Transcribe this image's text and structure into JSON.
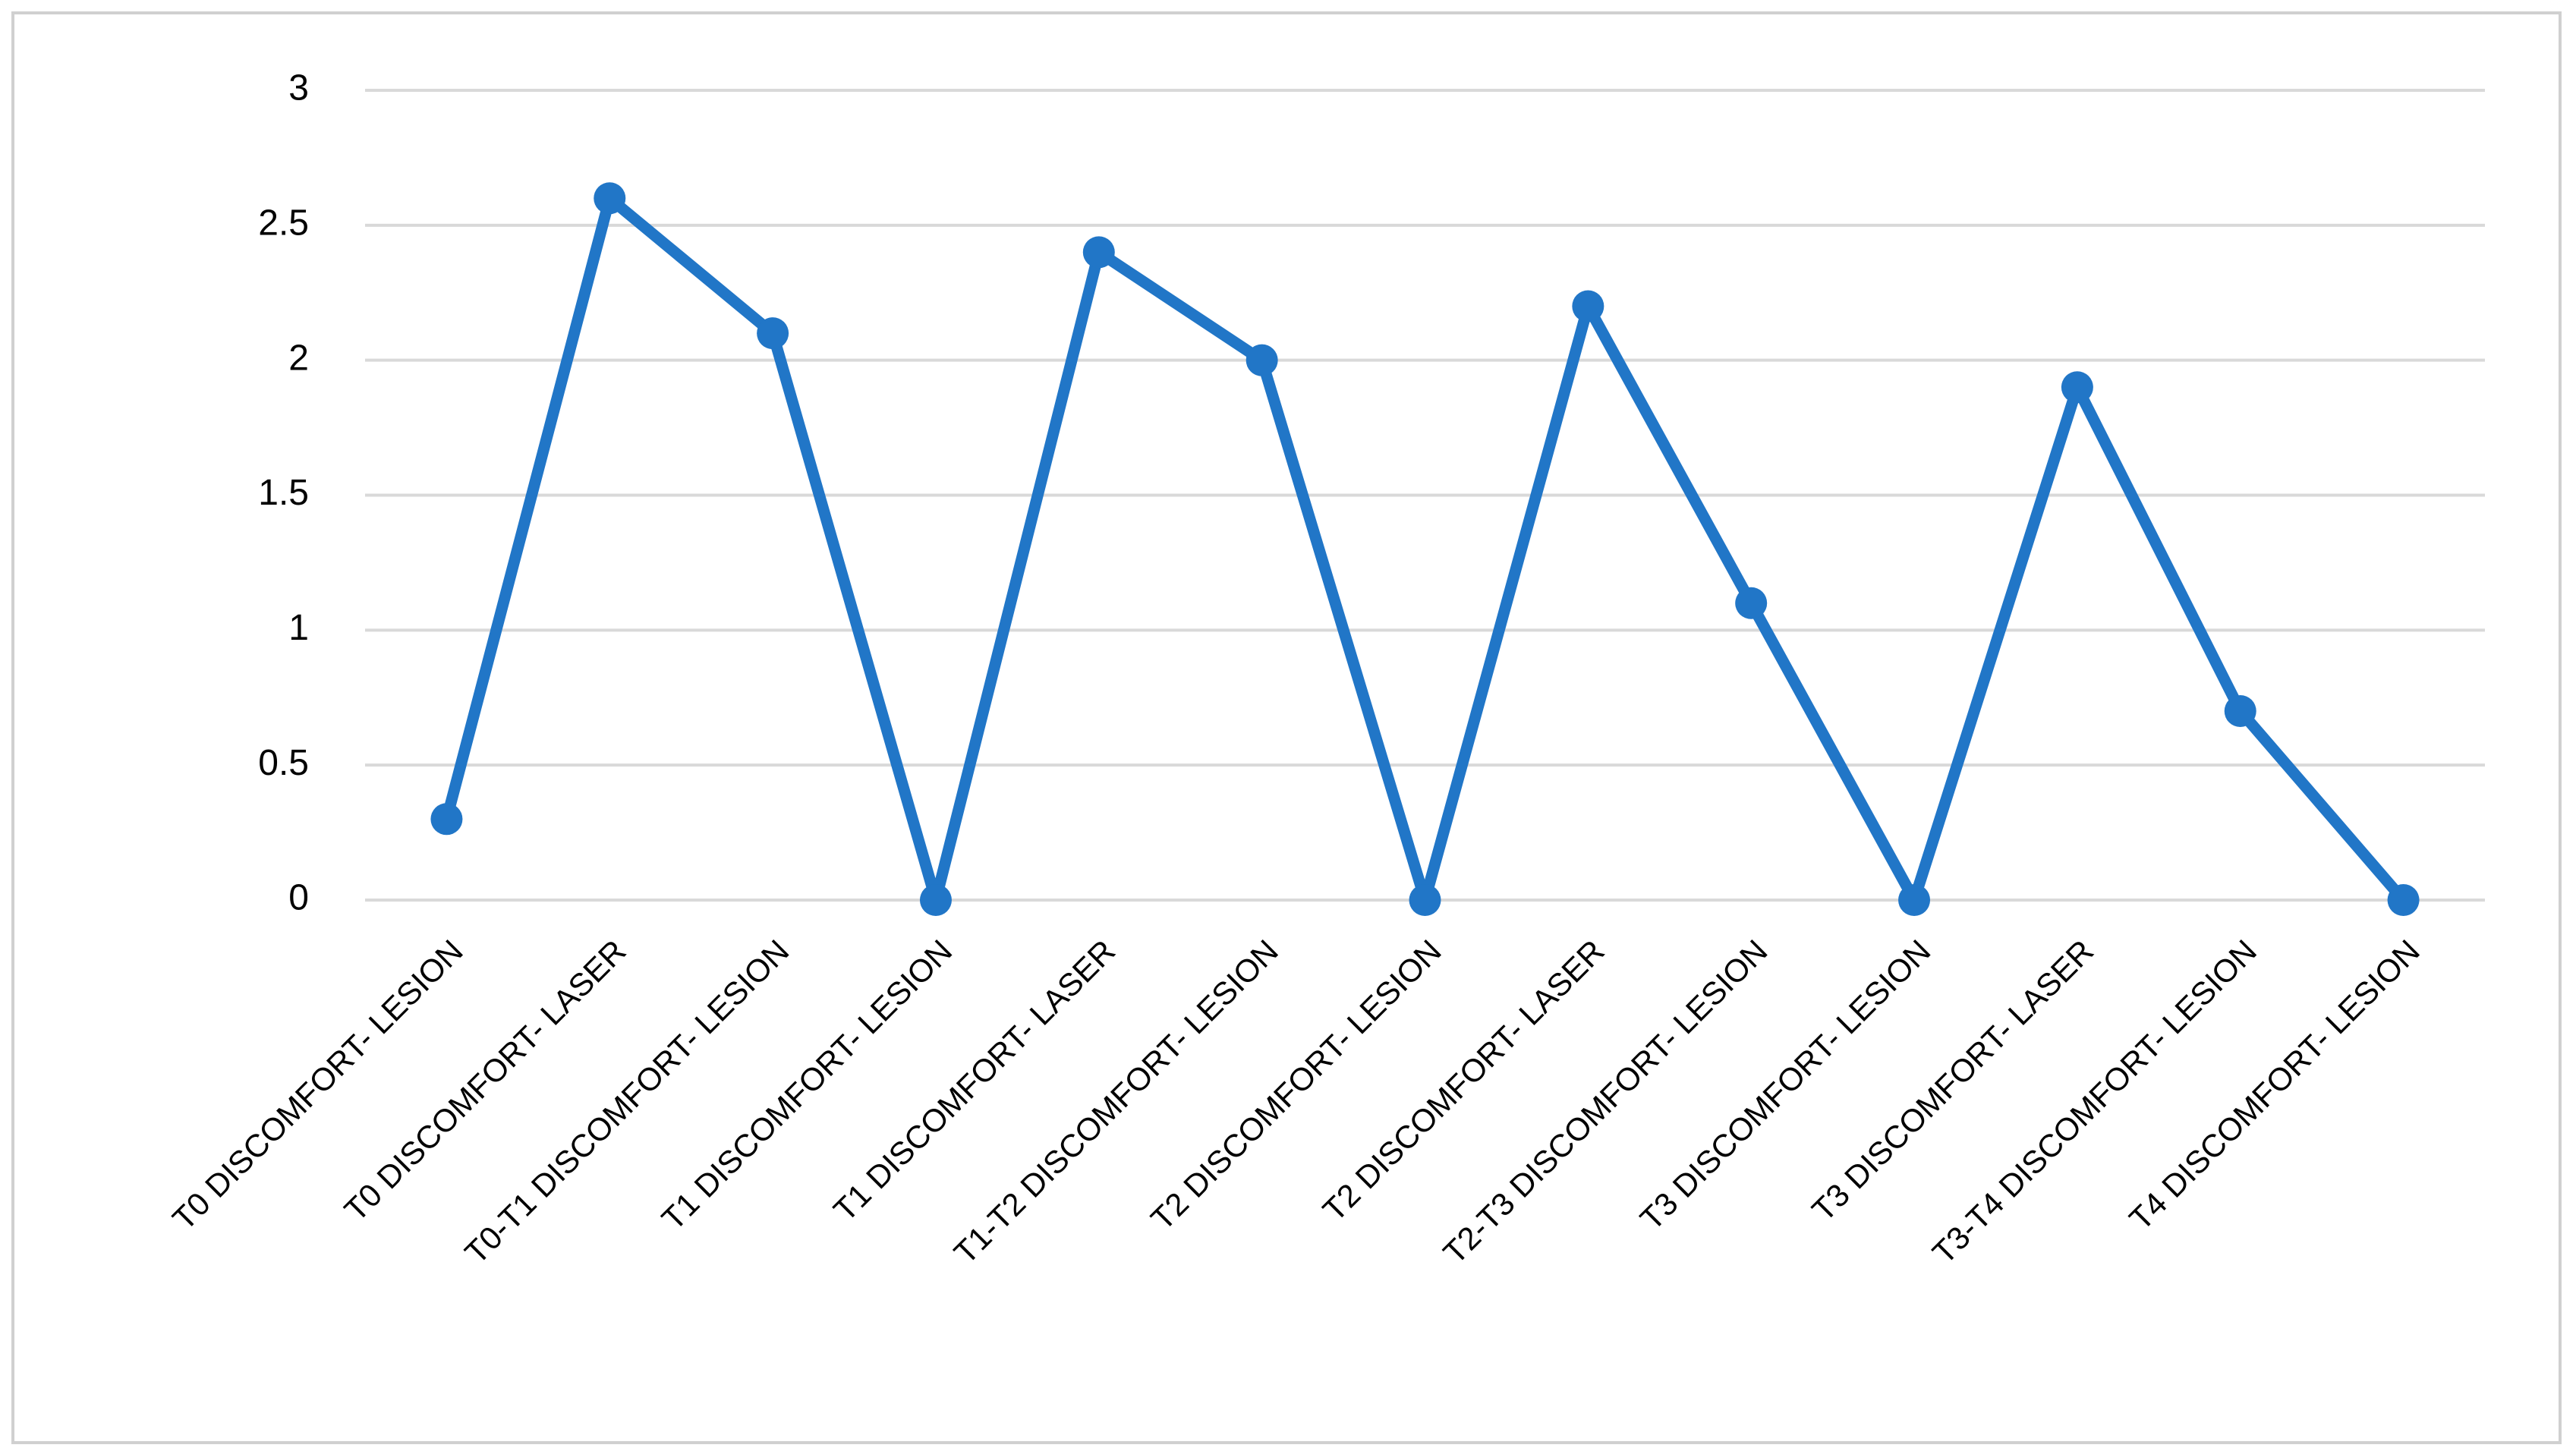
{
  "chart_data": {
    "type": "line",
    "categories": [
      "T0 DISCOMFORT- LESION",
      "T0 DISCOMFORT- LASER",
      "T0-T1 DISCOMFORT- LESION",
      "T1 DISCOMFORT- LESION",
      "T1 DISCOMFORT- LASER",
      "T1-T2 DISCOMFORT- LESION",
      "T2 DISCOMFORT- LESION",
      "T2 DISCOMFORT- LASER",
      "T2-T3 DISCOMFORT- LESION",
      "T3 DISCOMFORT- LESION",
      "T3 DISCOMFORT- LASER",
      "T3-T4 DISCOMFORT- LESION",
      "T4 DISCOMFORT- LESION"
    ],
    "values": [
      0.3,
      2.6,
      2.1,
      0,
      2.4,
      2.0,
      0,
      2.2,
      1.1,
      0,
      1.9,
      0.7,
      0
    ],
    "color": "#2176c7",
    "ylim": [
      0,
      3
    ],
    "yticks": [
      0,
      0.5,
      1,
      1.5,
      2,
      2.5,
      3
    ],
    "grid": true
  }
}
